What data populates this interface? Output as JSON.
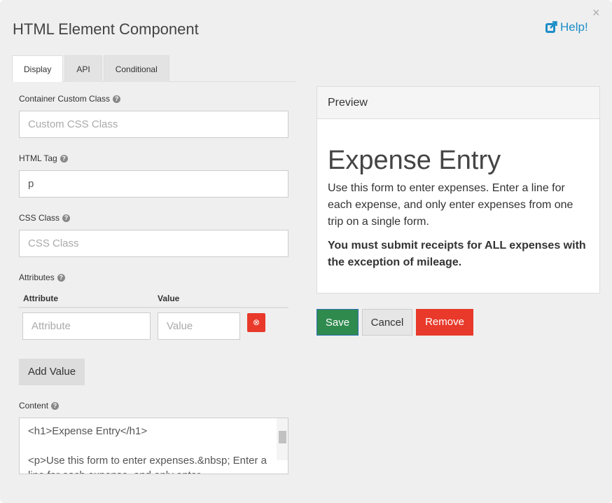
{
  "title": "HTML Element Component",
  "help": "Help!",
  "close": "×",
  "tabs": [
    "Display",
    "API",
    "Conditional"
  ],
  "fields": {
    "container_class": {
      "label": "Container Custom Class",
      "placeholder": "Custom CSS Class"
    },
    "html_tag": {
      "label": "HTML Tag",
      "value": "p"
    },
    "css_class": {
      "label": "CSS Class",
      "placeholder": "CSS Class"
    },
    "attributes": {
      "label": "Attributes",
      "col_attribute": "Attribute",
      "col_value": "Value",
      "attr_placeholder": "Attribute",
      "value_placeholder": "Value",
      "add_value": "Add Value"
    },
    "content": {
      "label": "Content",
      "lines": [
        "<h1>Expense Entry</h1>",
        "",
        "<p>Use this form to enter expenses.&nbsp; Enter a",
        "line for each expense, and only enter"
      ]
    }
  },
  "preview": {
    "header": "Preview",
    "heading": "Expense Entry",
    "paragraph": "Use this form to enter expenses.  Enter a line for each expense, and only enter expenses from one trip on a single form.",
    "bold": "You must submit receipts for ALL expenses with the exception of mileage."
  },
  "buttons": {
    "save": "Save",
    "cancel": "Cancel",
    "remove": "Remove"
  },
  "colors": {
    "save": "#2f8a4e",
    "remove": "#e8392a",
    "link": "#1c8ec8"
  }
}
